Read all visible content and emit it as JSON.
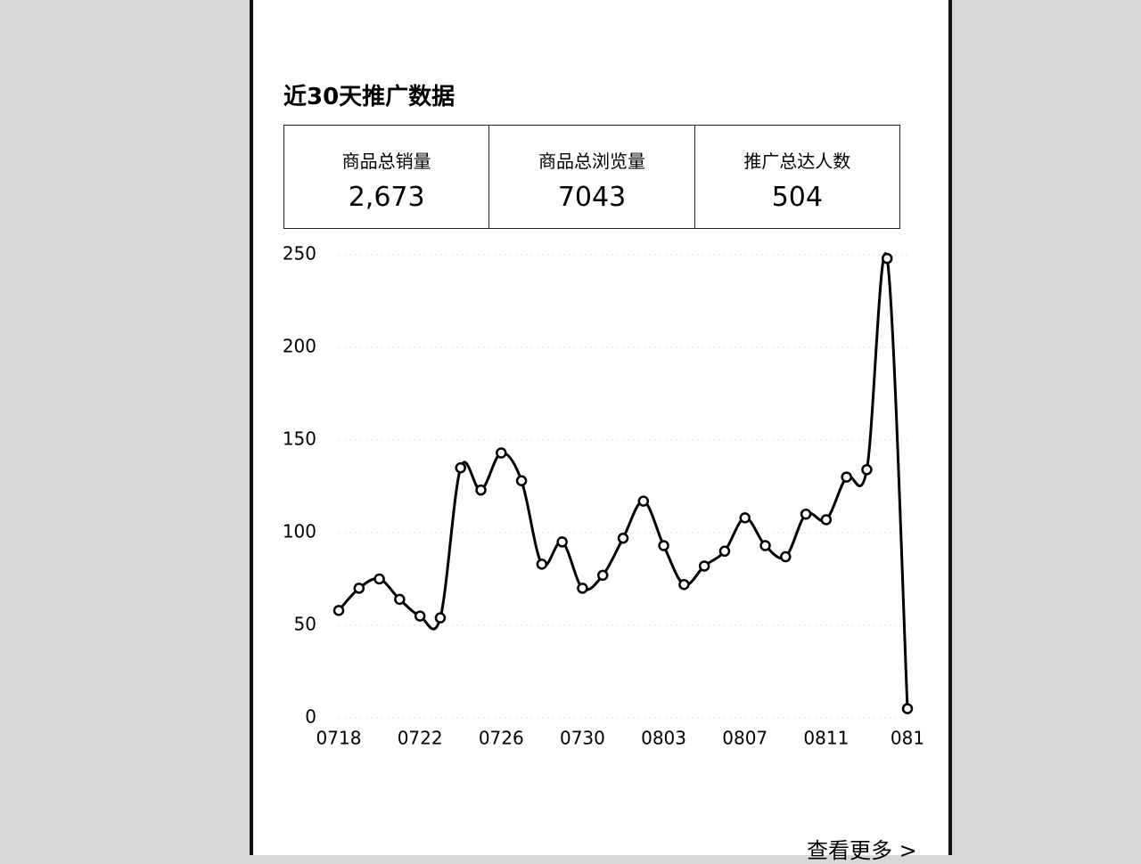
{
  "header": {
    "title": "近30天推广数据"
  },
  "stats": [
    {
      "label": "商品总销量",
      "value": "2,673"
    },
    {
      "label": "商品总浏览量",
      "value": "7043"
    },
    {
      "label": "推广总达人数",
      "value": "504"
    }
  ],
  "chart_data": {
    "type": "line",
    "categories": [
      "0718",
      null,
      null,
      null,
      "0722",
      null,
      null,
      null,
      "0726",
      null,
      null,
      null,
      "0730",
      null,
      null,
      null,
      "0803",
      null,
      null,
      null,
      "0807",
      null,
      null,
      null,
      "0811",
      null,
      null,
      null,
      "081"
    ],
    "series": [
      {
        "color": "#000000",
        "values": [
          58,
          70,
          75,
          64,
          55,
          54,
          135,
          123,
          143,
          128,
          83,
          95,
          70,
          77,
          97,
          117,
          93,
          72,
          82,
          90,
          108,
          93,
          87,
          110,
          107,
          130,
          134,
          248,
          5
        ]
      }
    ],
    "ylim": [
      0,
      250
    ],
    "yticks": [
      0,
      50,
      100,
      150,
      200,
      250
    ]
  },
  "footer": {
    "more": "查看更多 >"
  }
}
